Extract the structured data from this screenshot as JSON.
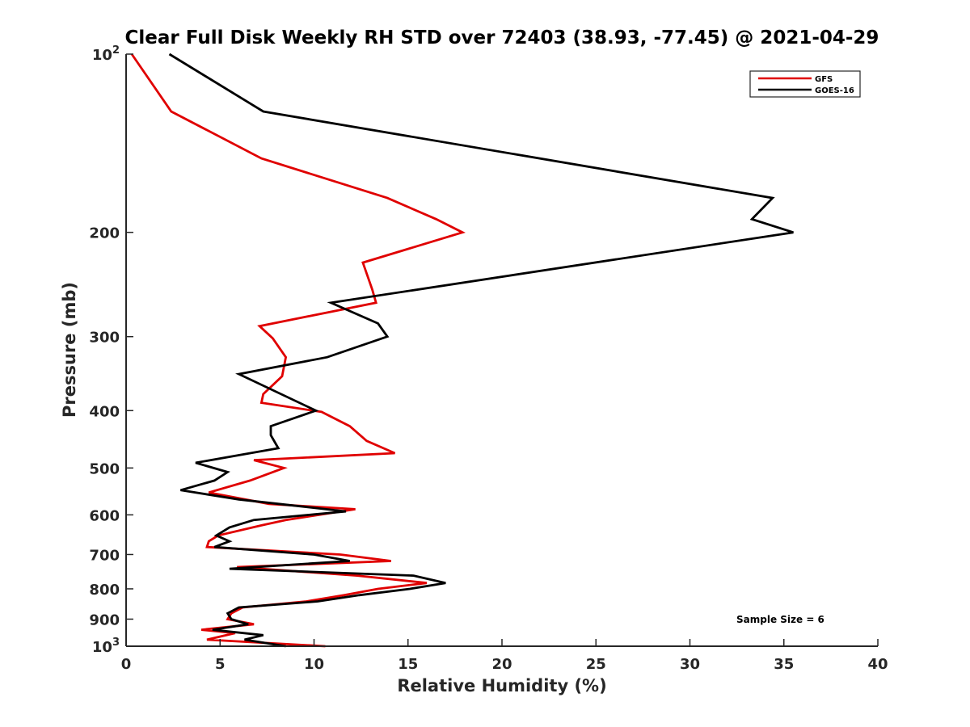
{
  "chart_data": {
    "type": "line",
    "title": "Clear Full Disk Weekly RH STD over 72403 (38.93, -77.45) @ 2021-04-29",
    "xlabel": "Relative Humidity (%)",
    "ylabel": "Pressure (mb)",
    "xlim": [
      0,
      40
    ],
    "ylim": [
      100,
      1000
    ],
    "y_scale": "log",
    "y_reversed": true,
    "x_ticks": [
      0,
      5,
      10,
      15,
      20,
      25,
      30,
      35,
      40
    ],
    "x_tick_labels": [
      "0",
      "5",
      "10",
      "15",
      "20",
      "25",
      "30",
      "35",
      "40"
    ],
    "y_ticks": [
      {
        "value": 100,
        "base": "10",
        "sup": "2"
      },
      {
        "value": 200,
        "base": "200",
        "sup": ""
      },
      {
        "value": 300,
        "base": "300",
        "sup": ""
      },
      {
        "value": 400,
        "base": "400",
        "sup": ""
      },
      {
        "value": 500,
        "base": "500",
        "sup": ""
      },
      {
        "value": 600,
        "base": "600",
        "sup": ""
      },
      {
        "value": 700,
        "base": "700",
        "sup": ""
      },
      {
        "value": 800,
        "base": "800",
        "sup": ""
      },
      {
        "value": 900,
        "base": "900",
        "sup": ""
      },
      {
        "value": 1000,
        "base": "10",
        "sup": "3"
      }
    ],
    "grid": false,
    "legend_position": "top-right",
    "annotation": "Sample Size = 6",
    "series": [
      {
        "name": "GFS",
        "color": "#e00000",
        "points": [
          [
            0.3,
            100
          ],
          [
            2.4,
            125
          ],
          [
            7.2,
            150
          ],
          [
            13.9,
            175
          ],
          [
            16.5,
            190
          ],
          [
            17.9,
            200
          ],
          [
            12.6,
            225
          ],
          [
            13.1,
            250
          ],
          [
            13.3,
            263
          ],
          [
            7.1,
            288
          ],
          [
            7.8,
            302
          ],
          [
            8.5,
            325
          ],
          [
            8.3,
            350
          ],
          [
            7.3,
            375
          ],
          [
            7.2,
            388
          ],
          [
            10.4,
            402
          ],
          [
            11.9,
            425
          ],
          [
            12.8,
            450
          ],
          [
            14.3,
            472
          ],
          [
            6.8,
            485
          ],
          [
            8.4,
            500
          ],
          [
            6.6,
            525
          ],
          [
            4.4,
            550
          ],
          [
            7.6,
            575
          ],
          [
            12.2,
            587
          ],
          [
            8.5,
            612
          ],
          [
            7.2,
            625
          ],
          [
            4.9,
            650
          ],
          [
            4.4,
            665
          ],
          [
            4.3,
            680
          ],
          [
            11.4,
            700
          ],
          [
            14.1,
            718
          ],
          [
            5.9,
            735
          ],
          [
            12.3,
            760
          ],
          [
            16.0,
            782
          ],
          [
            13.4,
            800
          ],
          [
            11.6,
            820
          ],
          [
            9.6,
            840
          ],
          [
            6.2,
            860
          ],
          [
            5.6,
            880
          ],
          [
            5.4,
            900
          ],
          [
            6.8,
            918
          ],
          [
            4.0,
            938
          ],
          [
            5.8,
            950
          ],
          [
            4.3,
            975
          ],
          [
            10.6,
            1000
          ]
        ]
      },
      {
        "name": "GOES-16",
        "color": "#000000",
        "points": [
          [
            2.3,
            100
          ],
          [
            7.3,
            125
          ],
          [
            34.4,
            175
          ],
          [
            33.3,
            190
          ],
          [
            35.5,
            200
          ],
          [
            10.9,
            263
          ],
          [
            13.4,
            285
          ],
          [
            13.9,
            300
          ],
          [
            10.7,
            325
          ],
          [
            6.0,
            347
          ],
          [
            10.1,
            400
          ],
          [
            7.7,
            425
          ],
          [
            7.7,
            440
          ],
          [
            8.1,
            463
          ],
          [
            3.7,
            490
          ],
          [
            5.4,
            508
          ],
          [
            4.7,
            525
          ],
          [
            2.9,
            545
          ],
          [
            6.0,
            565
          ],
          [
            11.7,
            592
          ],
          [
            6.8,
            612
          ],
          [
            5.5,
            630
          ],
          [
            4.8,
            650
          ],
          [
            5.5,
            665
          ],
          [
            4.7,
            680
          ],
          [
            10.0,
            700
          ],
          [
            11.9,
            718
          ],
          [
            5.5,
            740
          ],
          [
            15.3,
            760
          ],
          [
            17.0,
            782
          ],
          [
            15.1,
            800
          ],
          [
            12.4,
            820
          ],
          [
            10.2,
            840
          ],
          [
            6.0,
            860
          ],
          [
            5.4,
            880
          ],
          [
            5.6,
            900
          ],
          [
            6.5,
            918
          ],
          [
            4.6,
            938
          ],
          [
            7.3,
            958
          ],
          [
            6.3,
            975
          ],
          [
            8.5,
            1000
          ]
        ]
      }
    ]
  }
}
